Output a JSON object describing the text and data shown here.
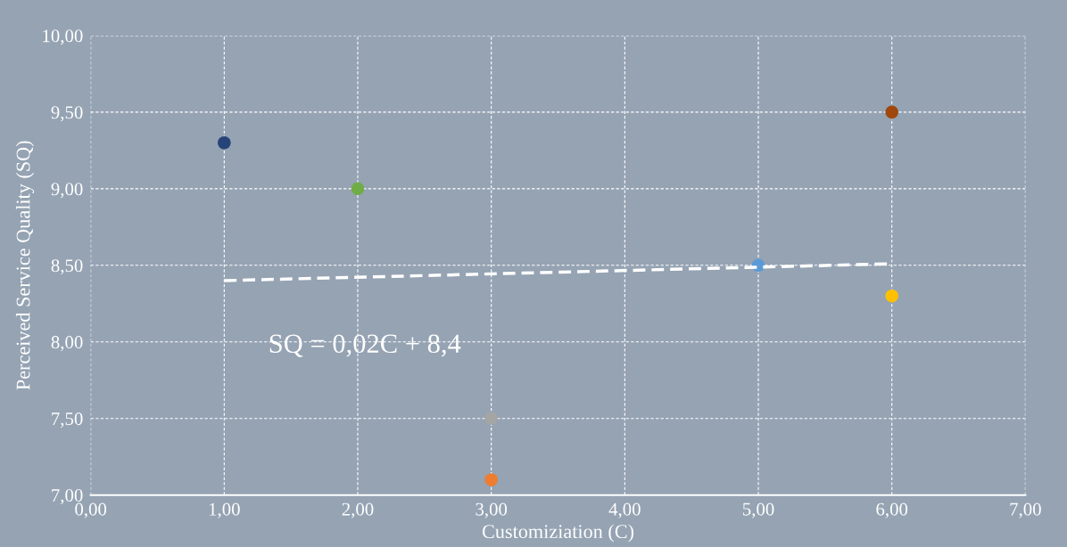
{
  "chart_data": {
    "type": "scatter",
    "xlabel": "Customiziation (C)",
    "ylabel": "Perceived Service Quality (SQ)",
    "xlim": [
      0,
      7
    ],
    "ylim": [
      7,
      10
    ],
    "xticks": [
      {
        "value": 0,
        "label": "0,00"
      },
      {
        "value": 1,
        "label": "1,00"
      },
      {
        "value": 2,
        "label": "2,00"
      },
      {
        "value": 3,
        "label": "3,00"
      },
      {
        "value": 4,
        "label": "4,00"
      },
      {
        "value": 5,
        "label": "5,00"
      },
      {
        "value": 6,
        "label": "6,00"
      },
      {
        "value": 7,
        "label": "7,00"
      }
    ],
    "yticks": [
      {
        "value": 7,
        "label": "7,00"
      },
      {
        "value": 7.5,
        "label": "7,50"
      },
      {
        "value": 8,
        "label": "8,00"
      },
      {
        "value": 8.5,
        "label": "8,50"
      },
      {
        "value": 9,
        "label": "9,00"
      },
      {
        "value": 9.5,
        "label": "9,50"
      },
      {
        "value": 10,
        "label": "10,00"
      }
    ],
    "grid": true,
    "series": [
      {
        "marker": "circle",
        "x": [
          1,
          2,
          3,
          3,
          5,
          6,
          6
        ],
        "values": [
          9.3,
          9.0,
          7.5,
          7.1,
          8.5,
          9.5,
          8.3
        ],
        "colors": [
          "#264478",
          "#70ad47",
          "#a5a5a5",
          "#ed7d31",
          "#5b9bd5",
          "#9e480e",
          "#ffc000"
        ]
      },
      {
        "type": "line",
        "x": [
          1,
          6
        ],
        "values": [
          8.4,
          8.51
        ],
        "color": "#ffffff",
        "line_style": "dashed",
        "marker": "none"
      }
    ],
    "annotations": [
      "SQ = 0,02C + 8,4"
    ]
  }
}
